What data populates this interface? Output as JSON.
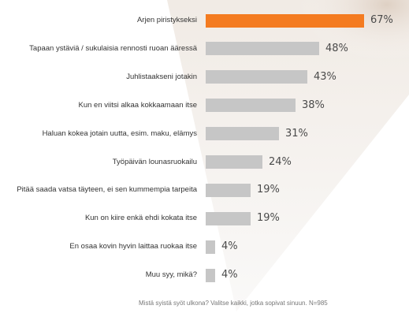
{
  "chart_data": {
    "type": "bar",
    "orientation": "horizontal",
    "categories": [
      "Arjen piristykseksi",
      "Tapaan ystäviä / sukulaisia rennosti ruoan ääressä",
      "Juhlistaakseni jotakin",
      "Kun en viitsi alkaa kokkaamaan itse",
      "Haluan kokea jotain uutta, esim. maku, elämys",
      "Työpäivän lounasruokailu",
      "Pitää saada vatsa täyteen, ei sen kummempia tarpeita",
      "Kun on kiire enkä ehdi kokata itse",
      "En osaa kovin hyvin laittaa ruokaa itse",
      "Muu syy, mikä?"
    ],
    "values": [
      67,
      48,
      43,
      38,
      31,
      24,
      19,
      19,
      4,
      4
    ],
    "unit": "%",
    "highlight_index": 0,
    "colors": {
      "highlight": "#F47B20",
      "bar": "#C6C6C6"
    },
    "grid": false,
    "note": "Mistä syistä syöt ulkona? Valitse kaikki, jotka sopivat sinuun. N=985"
  }
}
